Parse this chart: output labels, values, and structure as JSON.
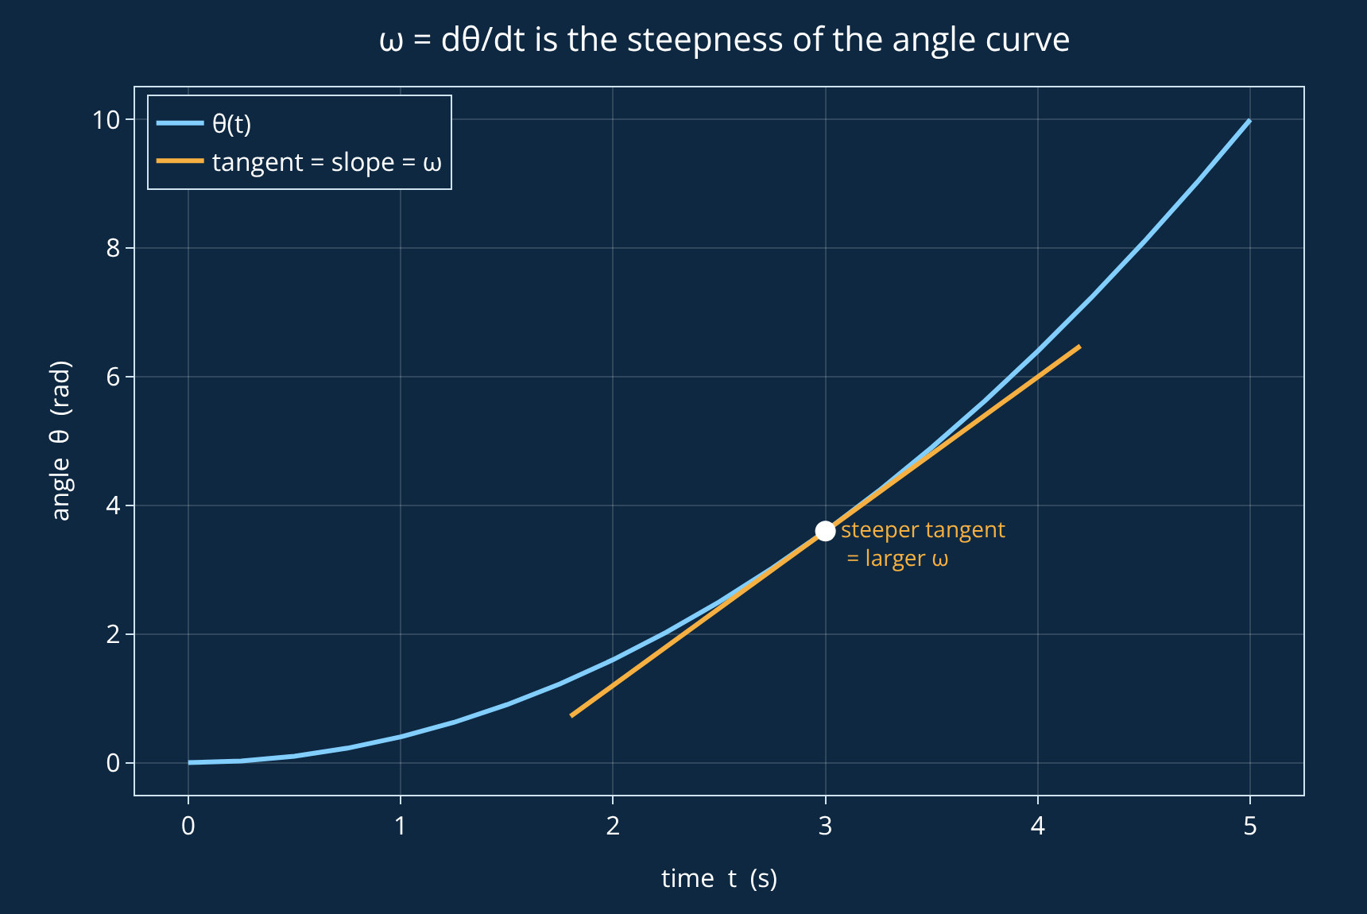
{
  "chart_data": {
    "type": "line",
    "title": "ω = dθ/dt is the steepness of the angle curve",
    "xlabel": "time  t  (s)",
    "ylabel": "angle  θ  (rad)",
    "x": [
      0,
      0.25,
      0.5,
      0.75,
      1,
      1.25,
      1.5,
      1.75,
      2,
      2.25,
      2.5,
      2.75,
      3,
      3.25,
      3.5,
      3.75,
      4,
      4.25,
      4.5,
      4.75,
      5
    ],
    "series": [
      {
        "name": "θ(t)",
        "color": "#82cfff",
        "values": [
          0,
          0.025,
          0.1,
          0.225,
          0.4,
          0.625,
          0.9,
          1.225,
          1.6,
          2.025,
          2.5,
          3.025,
          3.6,
          4.225,
          4.9,
          5.625,
          6.4,
          7.225,
          8.1,
          9.025,
          10
        ]
      },
      {
        "name": "tangent = slope = ω",
        "color": "#f5b041",
        "x": [
          1.8,
          4.2
        ],
        "values": [
          0.72,
          6.48
        ]
      },
      {
        "type": "scatter",
        "color": "#ffffff",
        "marker": "circle",
        "x": [
          3
        ],
        "values": [
          3.6
        ]
      }
    ],
    "annotations": [
      {
        "text": "steeper tangent\n = larger ω",
        "x": 3,
        "y": 3.6
      }
    ],
    "xlim": [
      -0.25,
      5.25
    ],
    "ylim": [
      -0.5,
      10.5
    ],
    "xticks": [
      0,
      1,
      2,
      3,
      4,
      5
    ],
    "yticks": [
      0,
      2,
      4,
      6,
      8,
      10
    ],
    "grid": true,
    "legend": "top left",
    "line_style": "solid"
  }
}
